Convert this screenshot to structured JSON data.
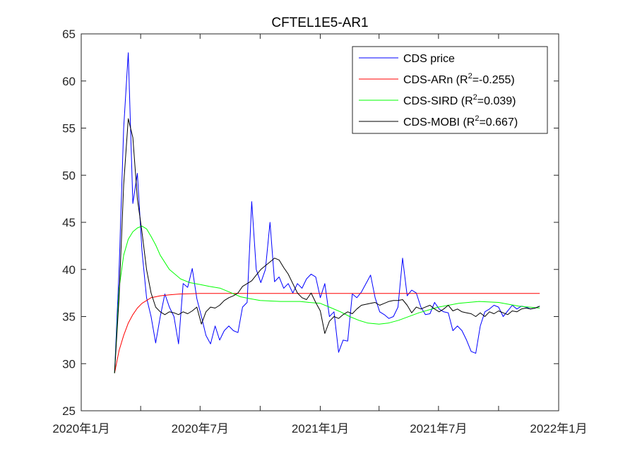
{
  "chart_data": {
    "type": "line",
    "title": "CFTEL1E5-AR1",
    "xlabel": "",
    "ylabel": "",
    "x_ticks": [
      "2020年1月",
      "2020年7月",
      "2021年1月",
      "2021年7月",
      "2022年1月"
    ],
    "x_tick_dates": [
      "2020-01-01",
      "2020-07-01",
      "2021-01-01",
      "2021-07-01",
      "2022-01-01"
    ],
    "xlim": [
      "2020-01-01",
      "2022-01-01"
    ],
    "ylim": [
      25,
      65
    ],
    "y_ticks": [
      25,
      30,
      35,
      40,
      45,
      50,
      55,
      60,
      65
    ],
    "grid": false,
    "legend_position": "top-right",
    "series": [
      {
        "name": "CDS price",
        "color": "#0000ff",
        "x": [
          "2020-02-21",
          "2020-02-28",
          "2020-03-06",
          "2020-03-13",
          "2020-03-20",
          "2020-03-27",
          "2020-04-03",
          "2020-04-10",
          "2020-04-17",
          "2020-04-24",
          "2020-05-01",
          "2020-05-08",
          "2020-05-15",
          "2020-05-22",
          "2020-05-29",
          "2020-06-05",
          "2020-06-12",
          "2020-06-19",
          "2020-06-26",
          "2020-07-03",
          "2020-07-10",
          "2020-07-17",
          "2020-07-24",
          "2020-07-31",
          "2020-08-07",
          "2020-08-14",
          "2020-08-21",
          "2020-08-28",
          "2020-09-04",
          "2020-09-11",
          "2020-09-18",
          "2020-09-25",
          "2020-10-02",
          "2020-10-09",
          "2020-10-16",
          "2020-10-23",
          "2020-10-30",
          "2020-11-06",
          "2020-11-13",
          "2020-11-20",
          "2020-11-27",
          "2020-12-04",
          "2020-12-11",
          "2020-12-18",
          "2020-12-25",
          "2021-01-01",
          "2021-01-08",
          "2021-01-15",
          "2021-01-22",
          "2021-01-29",
          "2021-02-05",
          "2021-02-12",
          "2021-02-19",
          "2021-02-26",
          "2021-03-05",
          "2021-03-12",
          "2021-03-19",
          "2021-03-26",
          "2021-04-02",
          "2021-04-09",
          "2021-04-16",
          "2021-04-23",
          "2021-04-30",
          "2021-05-07",
          "2021-05-14",
          "2021-05-21",
          "2021-05-28",
          "2021-06-04",
          "2021-06-11",
          "2021-06-18",
          "2021-06-25",
          "2021-07-02",
          "2021-07-09",
          "2021-07-16",
          "2021-07-23",
          "2021-07-30",
          "2021-08-06",
          "2021-08-13",
          "2021-08-20",
          "2021-08-27",
          "2021-09-03",
          "2021-09-10",
          "2021-09-17",
          "2021-09-24",
          "2021-10-01",
          "2021-10-08",
          "2021-10-15",
          "2021-10-22",
          "2021-10-29",
          "2021-11-05",
          "2021-11-12",
          "2021-11-19",
          "2021-11-26",
          "2021-12-03"
        ],
        "values": [
          29.0,
          40.0,
          55.0,
          63.0,
          47.0,
          50.2,
          42.0,
          37.0,
          35.0,
          32.2,
          35.0,
          37.4,
          36.0,
          35.0,
          32.1,
          38.5,
          38.1,
          40.1,
          36.9,
          35.0,
          33.0,
          32.1,
          34.0,
          32.5,
          33.5,
          34.0,
          33.5,
          33.3,
          36.0,
          36.5,
          47.2,
          40.0,
          38.6,
          40.0,
          45.0,
          38.7,
          39.2,
          38.0,
          38.5,
          37.5,
          38.5,
          38.0,
          39.0,
          39.5,
          39.2,
          37.0,
          38.5,
          35.0,
          35.5,
          31.2,
          32.5,
          32.4,
          37.4,
          37.0,
          37.6,
          38.5,
          39.4,
          37.0,
          35.5,
          35.2,
          34.8,
          35.0,
          36.0,
          41.2,
          37.2,
          37.8,
          37.5,
          36.0,
          35.2,
          35.3,
          36.5,
          35.8,
          35.5,
          35.4,
          33.5,
          34.0,
          33.5,
          32.5,
          31.3,
          31.1,
          34.0,
          35.5,
          35.8,
          36.2,
          36.0,
          35.0,
          35.6,
          36.2,
          35.8,
          36.1,
          36.0,
          35.8,
          35.9,
          36.1
        ]
      },
      {
        "name": "CDS-ARn   (R2=-0.255)",
        "color": "#ff0000",
        "x": [
          "2020-02-21",
          "2020-02-28",
          "2020-03-06",
          "2020-03-13",
          "2020-03-20",
          "2020-03-27",
          "2020-04-03",
          "2020-04-10",
          "2020-04-17",
          "2020-04-24",
          "2020-05-01",
          "2020-05-15",
          "2020-06-01",
          "2020-07-01",
          "2021-01-01",
          "2021-07-01",
          "2021-12-03"
        ],
        "values": [
          29.0,
          31.4,
          33.0,
          34.3,
          35.2,
          35.9,
          36.4,
          36.7,
          37.0,
          37.1,
          37.2,
          37.3,
          37.4,
          37.45,
          37.45,
          37.45,
          37.45
        ]
      },
      {
        "name": "CDS-SIRD (R2=0.039)",
        "color": "#00ff00",
        "x": [
          "2020-02-21",
          "2020-02-28",
          "2020-03-06",
          "2020-03-13",
          "2020-03-20",
          "2020-03-27",
          "2020-04-03",
          "2020-04-10",
          "2020-04-17",
          "2020-04-24",
          "2020-05-01",
          "2020-05-15",
          "2020-06-01",
          "2020-06-15",
          "2020-07-01",
          "2020-07-15",
          "2020-08-01",
          "2020-08-15",
          "2020-09-01",
          "2020-09-15",
          "2020-10-01",
          "2020-11-01",
          "2020-12-01",
          "2020-12-15",
          "2021-01-01",
          "2021-01-15",
          "2021-02-01",
          "2021-02-15",
          "2021-03-01",
          "2021-03-15",
          "2021-04-01",
          "2021-04-15",
          "2021-05-01",
          "2021-06-01",
          "2021-07-01",
          "2021-08-01",
          "2021-09-01",
          "2021-10-01",
          "2021-11-01",
          "2021-12-03"
        ],
        "values": [
          29.0,
          38.0,
          41.5,
          43.2,
          44.0,
          44.4,
          44.6,
          44.3,
          43.5,
          42.6,
          41.5,
          40.0,
          39.0,
          38.6,
          38.4,
          38.2,
          38.0,
          37.6,
          37.1,
          36.9,
          36.7,
          36.6,
          36.6,
          36.5,
          36.4,
          36.0,
          35.5,
          35.0,
          34.6,
          34.3,
          34.2,
          34.3,
          34.6,
          35.4,
          36.0,
          36.4,
          36.6,
          36.5,
          36.1,
          35.9
        ]
      },
      {
        "name": "CDS-MOBI (R2=0.667)",
        "color": "#000000",
        "x": [
          "2020-02-21",
          "2020-02-28",
          "2020-03-06",
          "2020-03-13",
          "2020-03-20",
          "2020-03-27",
          "2020-04-03",
          "2020-04-10",
          "2020-04-17",
          "2020-04-24",
          "2020-05-01",
          "2020-05-08",
          "2020-05-15",
          "2020-05-22",
          "2020-05-29",
          "2020-06-05",
          "2020-06-12",
          "2020-06-19",
          "2020-06-26",
          "2020-07-03",
          "2020-07-10",
          "2020-07-17",
          "2020-07-24",
          "2020-07-31",
          "2020-08-07",
          "2020-08-14",
          "2020-08-21",
          "2020-08-28",
          "2020-09-04",
          "2020-09-11",
          "2020-09-18",
          "2020-09-25",
          "2020-10-02",
          "2020-10-09",
          "2020-10-16",
          "2020-10-23",
          "2020-10-30",
          "2020-11-06",
          "2020-11-13",
          "2020-11-20",
          "2020-11-27",
          "2020-12-04",
          "2020-12-11",
          "2020-12-18",
          "2020-12-25",
          "2021-01-01",
          "2021-01-08",
          "2021-01-15",
          "2021-01-22",
          "2021-01-29",
          "2021-02-05",
          "2021-02-12",
          "2021-02-19",
          "2021-02-26",
          "2021-03-05",
          "2021-03-12",
          "2021-03-19",
          "2021-03-26",
          "2021-04-02",
          "2021-04-09",
          "2021-04-16",
          "2021-04-23",
          "2021-04-30",
          "2021-05-07",
          "2021-05-14",
          "2021-05-21",
          "2021-05-28",
          "2021-06-04",
          "2021-06-11",
          "2021-06-18",
          "2021-06-25",
          "2021-07-02",
          "2021-07-09",
          "2021-07-16",
          "2021-07-23",
          "2021-07-30",
          "2021-08-06",
          "2021-08-13",
          "2021-08-20",
          "2021-08-27",
          "2021-09-03",
          "2021-09-10",
          "2021-09-17",
          "2021-09-24",
          "2021-10-01",
          "2021-10-08",
          "2021-10-15",
          "2021-10-22",
          "2021-10-29",
          "2021-11-05",
          "2021-11-12",
          "2021-11-19",
          "2021-11-26",
          "2021-12-03"
        ],
        "values": [
          29.0,
          37.0,
          49.0,
          56.0,
          54.0,
          47.5,
          44.0,
          40.0,
          37.5,
          36.0,
          35.5,
          35.2,
          35.5,
          35.4,
          35.2,
          35.5,
          35.3,
          35.6,
          36.0,
          34.2,
          35.5,
          36.0,
          35.9,
          36.2,
          36.7,
          37.0,
          37.2,
          37.5,
          38.2,
          38.5,
          38.8,
          39.4,
          40.0,
          40.4,
          40.8,
          41.2,
          41.0,
          40.2,
          39.5,
          38.5,
          37.5,
          37.0,
          36.8,
          37.5,
          36.5,
          35.6,
          33.2,
          34.5,
          35.0,
          34.8,
          35.2,
          35.5,
          35.3,
          35.8,
          36.2,
          36.3,
          36.4,
          36.5,
          36.2,
          36.4,
          36.6,
          36.7,
          36.7,
          36.8,
          36.2,
          35.4,
          36.0,
          35.8,
          36.0,
          36.2,
          35.8,
          35.5,
          35.8,
          36.2,
          35.6,
          35.8,
          35.5,
          35.4,
          35.3,
          35.0,
          35.4,
          35.0,
          35.5,
          35.3,
          35.6,
          35.4,
          35.2,
          35.6,
          35.5,
          35.8,
          35.9,
          35.8,
          35.9,
          36.1
        ]
      }
    ],
    "legend": {
      "entries": [
        {
          "prefix": "CDS price",
          "sup": "",
          "suffix": "",
          "color": "#0000ff"
        },
        {
          "prefix": "CDS-ARn   (R",
          "sup": "2",
          "suffix": "=-0.255)",
          "color": "#ff0000"
        },
        {
          "prefix": "CDS-SIRD (R",
          "sup": "2",
          "suffix": "=0.039)",
          "color": "#00ff00"
        },
        {
          "prefix": "CDS-MOBI (R",
          "sup": "2",
          "suffix": "=0.667)",
          "color": "#000000"
        }
      ]
    }
  }
}
